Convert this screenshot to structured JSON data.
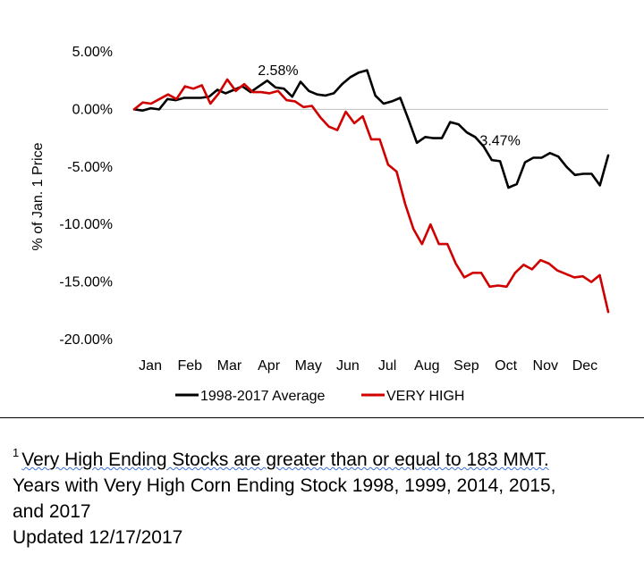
{
  "chart_data": {
    "type": "line",
    "title": "",
    "xlabel": "",
    "ylabel": "% of Jan. 1 Price",
    "ylim": [
      -20,
      5
    ],
    "yticks": [
      5,
      0,
      -5,
      -10,
      -15,
      -20
    ],
    "ytick_labels": [
      "5.00%",
      "0.00%",
      "-5.00%",
      "-10.00%",
      "-15.00%",
      "-20.00%"
    ],
    "month_labels": [
      "Jan",
      "Feb",
      "Mar",
      "Apr",
      "May",
      "Jun",
      "Jul",
      "Aug",
      "Sep",
      "Oct",
      "Nov",
      "Dec"
    ],
    "grid": false,
    "legend_position": "bottom",
    "annotations": [
      {
        "text": "2.58%",
        "series": 1,
        "point_index": 17
      },
      {
        "text": "3.47%",
        "series": 0,
        "point_index": 44
      }
    ],
    "series": [
      {
        "name": "1998-2017 Average",
        "color": "#000000",
        "values": [
          0,
          -0.1,
          0.1,
          0,
          0.9,
          0.8,
          1,
          1,
          1,
          1.1,
          1.7,
          1.4,
          1.7,
          2,
          1.5,
          2,
          2.5,
          1.9,
          1.8,
          1.1,
          2.4,
          1.6,
          1.3,
          1.2,
          1.4,
          2.2,
          2.8,
          3.2,
          3.4,
          1.2,
          0.5,
          0.7,
          1,
          -0.9,
          -2.9,
          -2.4,
          -2.5,
          -2.5,
          -1.1,
          -1.3,
          -2,
          -2.4,
          -3.2,
          -4.4,
          -4.5,
          -6.8,
          -6.5,
          -4.6,
          -4.2,
          -4.2,
          -3.8,
          -4.1,
          -5,
          -5.7,
          -5.6,
          -5.6,
          -6.6,
          -4
        ]
      },
      {
        "name": "VERY HIGH",
        "color": "#d00000",
        "values": [
          0,
          0.6,
          0.5,
          0.9,
          1.3,
          0.9,
          2,
          1.8,
          2.1,
          0.5,
          1.4,
          2.6,
          1.6,
          2.2,
          1.5,
          1.5,
          1.4,
          1.6,
          0.8,
          0.7,
          0.2,
          0.3,
          -0.7,
          -1.5,
          -1.8,
          -0.2,
          -1.2,
          -0.6,
          -2.6,
          -2.6,
          -4.8,
          -5.4,
          -8.2,
          -10.4,
          -11.7,
          -10,
          -11.7,
          -11.7,
          -13.4,
          -14.6,
          -14.2,
          -14.2,
          -15.4,
          -15.3,
          -15.4,
          -14.2,
          -13.5,
          -13.9,
          -13.1,
          -13.4,
          -14,
          -14.3,
          -14.6,
          -14.5,
          -15,
          -14.4,
          -17.6
        ]
      }
    ]
  },
  "footnote": {
    "marker": "1",
    "line1": "Very High Ending Stocks are greater than or equal to 183 MMT.",
    "line2": "Years  with Very High Corn Ending Stock 1998, 1999, 2014, 2015,",
    "line3": "and 2017",
    "line4": "Updated 12/17/2017"
  }
}
